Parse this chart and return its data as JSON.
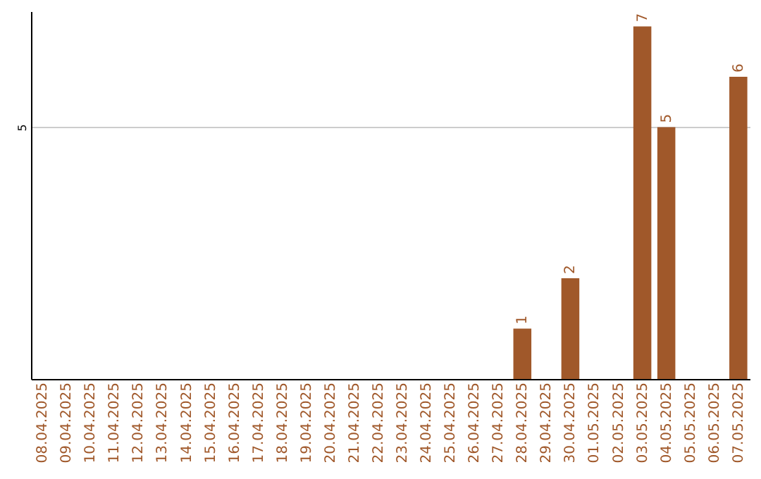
{
  "chart_data": {
    "type": "bar",
    "categories": [
      "08.04.2025",
      "09.04.2025",
      "10.04.2025",
      "11.04.2025",
      "12.04.2025",
      "13.04.2025",
      "14.04.2025",
      "15.04.2025",
      "16.04.2025",
      "17.04.2025",
      "18.04.2025",
      "19.04.2025",
      "20.04.2025",
      "21.04.2025",
      "22.04.2025",
      "23.04.2025",
      "24.04.2025",
      "25.04.2025",
      "26.04.2025",
      "27.04.2025",
      "28.04.2025",
      "29.04.2025",
      "30.04.2025",
      "01.05.2025",
      "02.05.2025",
      "03.05.2025",
      "04.05.2025",
      "05.05.2025",
      "06.05.2025",
      "07.05.2025"
    ],
    "values": [
      null,
      null,
      null,
      null,
      null,
      null,
      null,
      null,
      null,
      null,
      null,
      null,
      null,
      null,
      null,
      null,
      null,
      null,
      null,
      null,
      1,
      null,
      2,
      null,
      null,
      7,
      5,
      null,
      null,
      6
    ],
    "data_labels": true,
    "color": "#a0582a",
    "ylim": [
      0,
      7.3
    ],
    "yticks": [
      5
    ],
    "grid": "y"
  }
}
